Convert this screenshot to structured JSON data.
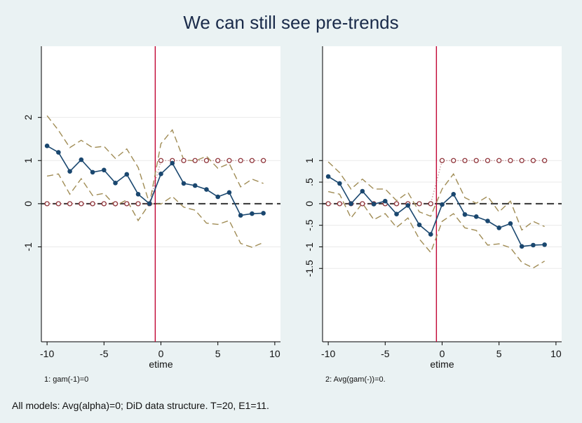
{
  "title": "We can still see pre-trends",
  "note": "All models: Avg(alpha)=0; DiD data structure. T=20, E1=11.",
  "colors": {
    "background": "#eaf2f3",
    "plot_bg": "#ffffff",
    "estimate": "#1a476f",
    "ci": "#a08c55",
    "true_effect": "#90353b",
    "event_line": "#c10534",
    "zero_line": "#333333",
    "grid": "#eaeaea"
  },
  "chart_data": [
    {
      "type": "line",
      "caption": "1: gam(-1)=0",
      "xlabel": "etime",
      "ylabel": "",
      "xlim": [
        -10.5,
        10.5
      ],
      "ylim": [
        -3.2,
        3.65
      ],
      "x_ticks": [
        -10,
        -5,
        0,
        5,
        10
      ],
      "x_tick_labels": [
        "-10",
        "-5",
        "0",
        "5",
        "10"
      ],
      "y_ticks": [
        -1,
        0,
        1,
        2
      ],
      "y_tick_labels": [
        "-1",
        "0",
        "1",
        "2"
      ],
      "event_line_x": -0.5,
      "grid": true,
      "x": [
        -10,
        -9,
        -8,
        -7,
        -6,
        -5,
        -4,
        -3,
        -2,
        -1,
        0,
        1,
        2,
        3,
        4,
        5,
        6,
        7,
        8,
        9
      ],
      "series": [
        {
          "role": "estimate",
          "values": [
            1.34,
            1.19,
            0.75,
            1.02,
            0.73,
            0.78,
            0.48,
            0.68,
            0.22,
            0.0,
            0.69,
            0.94,
            0.47,
            0.42,
            0.33,
            0.16,
            0.26,
            -0.27,
            -0.23,
            -0.22
          ]
        },
        {
          "role": "ci_upper",
          "values": [
            2.04,
            1.7,
            1.3,
            1.47,
            1.3,
            1.33,
            1.05,
            1.27,
            0.84,
            0.0,
            1.39,
            1.71,
            1.02,
            0.99,
            1.1,
            0.82,
            0.93,
            0.39,
            0.57,
            0.47
          ]
        },
        {
          "role": "ci_lower",
          "values": [
            0.64,
            0.69,
            0.22,
            0.58,
            0.19,
            0.24,
            -0.05,
            0.09,
            -0.39,
            0.0,
            -0.01,
            0.17,
            -0.08,
            -0.15,
            -0.45,
            -0.48,
            -0.39,
            -0.92,
            -1.01,
            -0.9
          ]
        },
        {
          "role": "true",
          "values": [
            0,
            0,
            0,
            0,
            0,
            0,
            0,
            0,
            0,
            0,
            1,
            1,
            1,
            1,
            1,
            1,
            1,
            1,
            1,
            1
          ]
        }
      ]
    },
    {
      "type": "line",
      "caption": "2: Avg(gam(-))=0.",
      "xlabel": "etime",
      "ylabel": "",
      "xlim": [
        -10.5,
        10.5
      ],
      "ylim": [
        -3.2,
        3.65
      ],
      "x_ticks": [
        -10,
        -5,
        0,
        5,
        10
      ],
      "x_tick_labels": [
        "-10",
        "-5",
        "0",
        "5",
        "10"
      ],
      "y_ticks": [
        -1.5,
        -1,
        -0.5,
        0,
        0.5,
        1
      ],
      "y_tick_labels": [
        "-1.5",
        "-1",
        "-.5",
        "0",
        ".5",
        "1"
      ],
      "event_line_x": -0.5,
      "grid": true,
      "x": [
        -10,
        -9,
        -8,
        -7,
        -6,
        -5,
        -4,
        -3,
        -2,
        -1,
        0,
        1,
        2,
        3,
        4,
        5,
        6,
        7,
        8,
        9
      ],
      "series": [
        {
          "role": "estimate",
          "values": [
            0.63,
            0.47,
            0.0,
            0.29,
            -0.01,
            0.06,
            -0.24,
            -0.04,
            -0.49,
            -0.71,
            -0.02,
            0.22,
            -0.25,
            -0.3,
            -0.4,
            -0.56,
            -0.46,
            -0.99,
            -0.96,
            -0.95
          ]
        },
        {
          "role": "ci_upper",
          "values": [
            0.97,
            0.72,
            0.34,
            0.57,
            0.34,
            0.34,
            0.07,
            0.26,
            -0.19,
            -0.29,
            0.34,
            0.69,
            0.14,
            0.01,
            0.17,
            -0.19,
            0.06,
            -0.61,
            -0.41,
            -0.53
          ]
        },
        {
          "role": "ci_lower",
          "values": [
            0.28,
            0.22,
            -0.33,
            0.01,
            -0.37,
            -0.23,
            -0.55,
            -0.33,
            -0.82,
            -1.13,
            -0.41,
            -0.23,
            -0.56,
            -0.62,
            -0.96,
            -0.93,
            -1.02,
            -1.36,
            -1.49,
            -1.33
          ]
        },
        {
          "role": "true",
          "values": [
            0,
            0,
            0,
            0,
            0,
            0,
            0,
            0,
            0,
            0,
            1,
            1,
            1,
            1,
            1,
            1,
            1,
            1,
            1,
            1
          ]
        }
      ]
    }
  ]
}
